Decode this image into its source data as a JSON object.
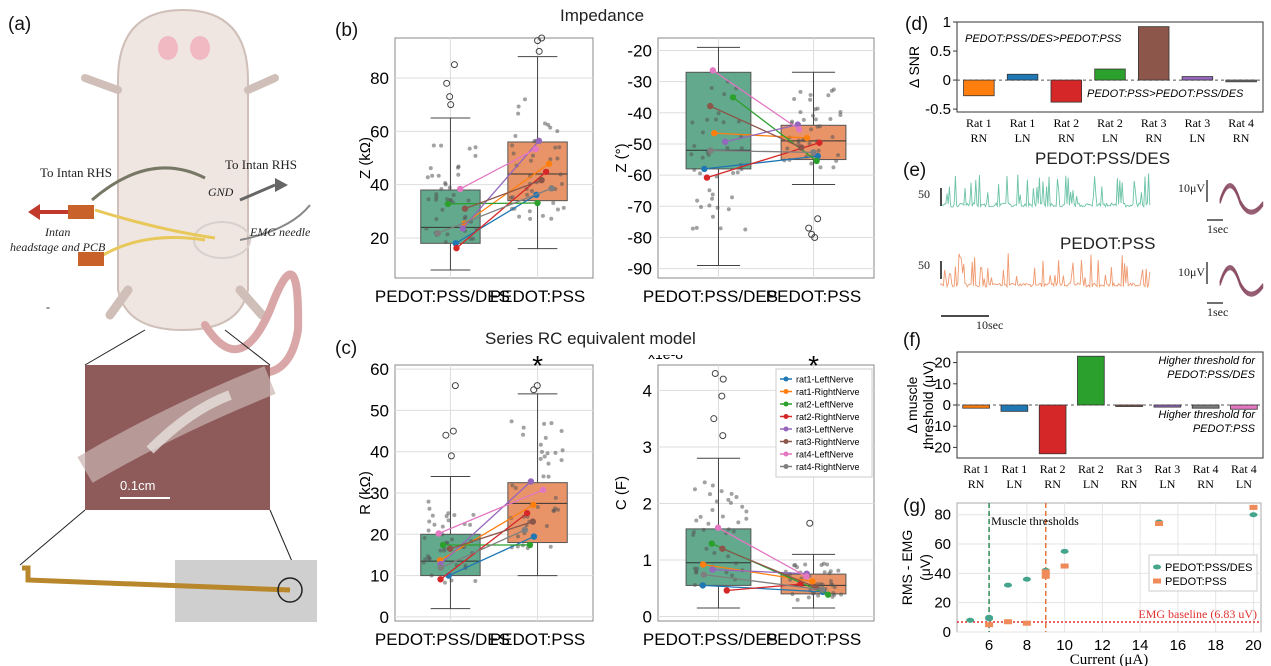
{
  "panel_labels": {
    "a": "(a)",
    "b": "(b)",
    "c": "(c)",
    "d": "(d)",
    "e": "(e)",
    "f": "(f)",
    "g": "(g)"
  },
  "panel_a": {
    "to_intan_left": "To Intan RHS",
    "to_intan_right": "To Intan RHS",
    "gnd": "GND",
    "emg_needle": "EMG needle",
    "headstage_line1": "Intan",
    "headstage_line2": "headstage and PCB",
    "dash": "-",
    "scale_bar": "0.1cm",
    "colors": {
      "rat_body": "#efe6e1",
      "rat_tail": "#d9a7a7",
      "ear": "#f1b9c2",
      "cable": "#777766",
      "yellow_wire": "#e8c85a",
      "pcb": "#c9612a",
      "arrow_red": "#c0392b",
      "photo_tissue": "#8e5a5a",
      "sheath": "#cfcfcf"
    }
  },
  "panel_b": {
    "title": "Impedance",
    "left": {
      "ylabel": "Z (kΩ)",
      "yticks": [
        20,
        40,
        60,
        80
      ],
      "ylim": [
        5,
        95
      ],
      "categories": [
        "PEDOT:PSS/DES",
        "PEDOT:PSS"
      ],
      "boxes": [
        {
          "q1": 18,
          "median": 24,
          "q3": 38,
          "whisker_low": 8,
          "whisker_high": 65,
          "color": "#62a98e"
        },
        {
          "q1": 34,
          "median": 44,
          "q3": 56,
          "whisker_low": 16,
          "whisker_high": 88,
          "color": "#e89468"
        }
      ],
      "outliers_high": [
        {
          "x": 0,
          "y": 70
        },
        {
          "x": 0,
          "y": 73
        },
        {
          "x": 0,
          "y": 78
        },
        {
          "x": 0,
          "y": 85
        },
        {
          "x": 1,
          "y": 90
        },
        {
          "x": 1,
          "y": 94
        },
        {
          "x": 1,
          "y": 95
        }
      ]
    },
    "right": {
      "ylabel": "Z (°)",
      "yticks": [
        -20,
        -30,
        -40,
        -50,
        -60,
        -70,
        -80,
        -90
      ],
      "ylim": [
        -93,
        -16
      ],
      "categories": [
        "PEDOT:PSS/DES",
        "PEDOT:PSS"
      ],
      "boxes": [
        {
          "q1": -58,
          "median": -52,
          "q3": -27,
          "whisker_low": -89,
          "whisker_high": -19,
          "color": "#62a98e"
        },
        {
          "q1": -55,
          "median": -49,
          "q3": -44,
          "whisker_low": -63,
          "whisker_high": -27,
          "color": "#e89468"
        }
      ],
      "outliers_low": [
        {
          "x": 1,
          "y": -74
        },
        {
          "x": 1,
          "y": -77
        },
        {
          "x": 1,
          "y": -79
        },
        {
          "x": 1,
          "y": -80
        }
      ]
    }
  },
  "panel_c": {
    "title": "Series RC equivalent model",
    "left": {
      "ylabel": "R (kΩ)",
      "yticks": [
        0,
        10,
        20,
        30,
        40,
        50,
        60
      ],
      "ylim": [
        -1,
        61
      ],
      "categories": [
        "PEDOT:PSS/DES",
        "PEDOT:PSS"
      ],
      "significance": "*",
      "boxes": [
        {
          "q1": 10,
          "median": 13.5,
          "q3": 20,
          "whisker_low": 2,
          "whisker_high": 34,
          "color": "#62a98e"
        },
        {
          "q1": 18,
          "median": 27.5,
          "q3": 32.5,
          "whisker_low": 10,
          "whisker_high": 54,
          "color": "#e89468"
        }
      ],
      "outliers_high": [
        {
          "x": 0,
          "y": 39
        },
        {
          "x": 0,
          "y": 44
        },
        {
          "x": 0,
          "y": 45
        },
        {
          "x": 0,
          "y": 56
        },
        {
          "x": 1,
          "y": 55
        },
        {
          "x": 1,
          "y": 56
        }
      ]
    },
    "right": {
      "ylabel": "C (F)",
      "multiplier": "x1e-8",
      "yticks": [
        0,
        1,
        2,
        3,
        4
      ],
      "ylim": [
        -0.08,
        4.45
      ],
      "categories": [
        "PEDOT:PSS/DES",
        "PEDOT:PSS"
      ],
      "significance": "*",
      "boxes": [
        {
          "q1": 0.55,
          "median": 0.95,
          "q3": 1.55,
          "whisker_low": 0.15,
          "whisker_high": 2.8,
          "color": "#62a98e"
        },
        {
          "q1": 0.4,
          "median": 0.55,
          "q3": 0.75,
          "whisker_low": 0.15,
          "whisker_high": 1.1,
          "color": "#e89468"
        }
      ],
      "outliers_high": [
        {
          "x": 0,
          "y": 3.2
        },
        {
          "x": 0,
          "y": 3.5
        },
        {
          "x": 0,
          "y": 3.9
        },
        {
          "x": 0,
          "y": 4.2
        },
        {
          "x": 0,
          "y": 4.3
        },
        {
          "x": 1,
          "y": 1.65
        }
      ]
    },
    "legend": [
      {
        "name": "rat1-LeftNerve",
        "color": "#1f77b4"
      },
      {
        "name": "rat1-RightNerve",
        "color": "#ff7f0e"
      },
      {
        "name": "rat2-LeftNerve",
        "color": "#2ca02c"
      },
      {
        "name": "rat2-RightNerve",
        "color": "#d62728"
      },
      {
        "name": "rat3-LeftNerve",
        "color": "#9467bd"
      },
      {
        "name": "rat3-RightNerve",
        "color": "#8c564b"
      },
      {
        "name": "rat4-LeftNerve",
        "color": "#e377c2"
      },
      {
        "name": "rat4-RightNerve",
        "color": "#7f7f7f"
      }
    ],
    "legend_position": "top-right"
  },
  "chart_data": [
    {
      "type": "bar",
      "ylabel": "Δ SNR",
      "categories": [
        "Rat 1 RN",
        "Rat 1 LN",
        "Rat 2 RN",
        "Rat 2 LN",
        "Rat 3 RN",
        "Rat 3 LN",
        "Rat 4 RN"
      ],
      "values": [
        -0.27,
        0.1,
        -0.38,
        0.19,
        0.92,
        0.06,
        -0.03
      ],
      "colors": [
        "#ff7f0e",
        "#1f77b4",
        "#d62728",
        "#2ca02c",
        "#8c564b",
        "#9467bd",
        "#7f7f7f"
      ],
      "ylim": [
        -0.55,
        1.0
      ],
      "yticks": [
        -0.5,
        0,
        0.5,
        1
      ],
      "annotations": [
        "PEDOT:PSS/DES>PEDOT:PSS",
        "PEDOT:PSS>PEDOT:PSS/DES"
      ]
    },
    {
      "type": "bar",
      "ylabel_line1": "Δ muscle",
      "ylabel_line2": "threshold (μV)",
      "categories": [
        "Rat 1 RN",
        "Rat 1 LN",
        "Rat 2 RN",
        "Rat 2 LN",
        "Rat 3 RN",
        "Rat 3 LN",
        "Rat 4 RN",
        "Rat 4 LN"
      ],
      "values": [
        -1.5,
        -3.0,
        -23.0,
        23.0,
        -0.5,
        -1.0,
        -1.5,
        -2.0
      ],
      "colors": [
        "#ff7f0e",
        "#1f77b4",
        "#d62728",
        "#2ca02c",
        "#8c564b",
        "#9467bd",
        "#7f7f7f",
        "#e377c2"
      ],
      "ylim": [
        -25,
        25
      ],
      "yticks": [
        -20,
        -10,
        0,
        10,
        20
      ],
      "annotations": [
        [
          "Higher threshold for",
          "PEDOT:PSS/DES"
        ],
        [
          "Higher threshold for",
          "PEDOT:PSS"
        ]
      ]
    },
    {
      "type": "scatter",
      "xlabel": "Current (μA)",
      "ylabel_line1": "RMS - EMG",
      "ylabel_line2": "(μV)",
      "xticks": [
        6,
        8,
        10,
        12,
        14,
        16,
        18,
        20
      ],
      "yticks": [
        0,
        20,
        40,
        60,
        80
      ],
      "xlim": [
        4.3,
        20.4
      ],
      "ylim": [
        0,
        88
      ],
      "grid": true,
      "series": [
        {
          "name": "PEDOT:PSS/DES",
          "color": "#45a58c",
          "marker": "circle",
          "points": [
            [
              5,
              8
            ],
            [
              6,
              9
            ],
            [
              6,
              10
            ],
            [
              7,
              32
            ],
            [
              8,
              36
            ],
            [
              9,
              42
            ],
            [
              10,
              55
            ],
            [
              15,
              75
            ],
            [
              20,
              80
            ]
          ]
        },
        {
          "name": "PEDOT:PSS",
          "color": "#ef8a5a",
          "marker": "square",
          "points": [
            [
              6,
              5
            ],
            [
              7,
              7
            ],
            [
              8,
              6
            ],
            [
              9,
              38
            ],
            [
              9,
              41
            ],
            [
              10,
              45
            ],
            [
              15,
              74
            ],
            [
              20,
              85
            ]
          ]
        }
      ],
      "threshold_lines": [
        {
          "x": 6,
          "color": "#2e8b57"
        },
        {
          "x": 9,
          "color": "#e8743b"
        }
      ],
      "threshold_label": "Muscle thresholds",
      "baseline": {
        "y": 6.83,
        "label": "EMG baseline (6.83 uV)",
        "color": "#e03030"
      },
      "legend_position": "center-right"
    }
  ],
  "panel_e": {
    "label_top": "PEDOT:PSS/DES",
    "label_bottom": "PEDOT:PSS",
    "scale_v_top": "50",
    "scale_v_bottom": "50",
    "scale_time": "10sec",
    "inset_top_v": "10μV",
    "inset_top_t": "1sec",
    "inset_bottom_v": "10μV",
    "inset_bottom_t": "1sec",
    "colors": {
      "top": "#6cc3a8",
      "bottom": "#f09a70",
      "spike": "#8a4b63"
    }
  }
}
